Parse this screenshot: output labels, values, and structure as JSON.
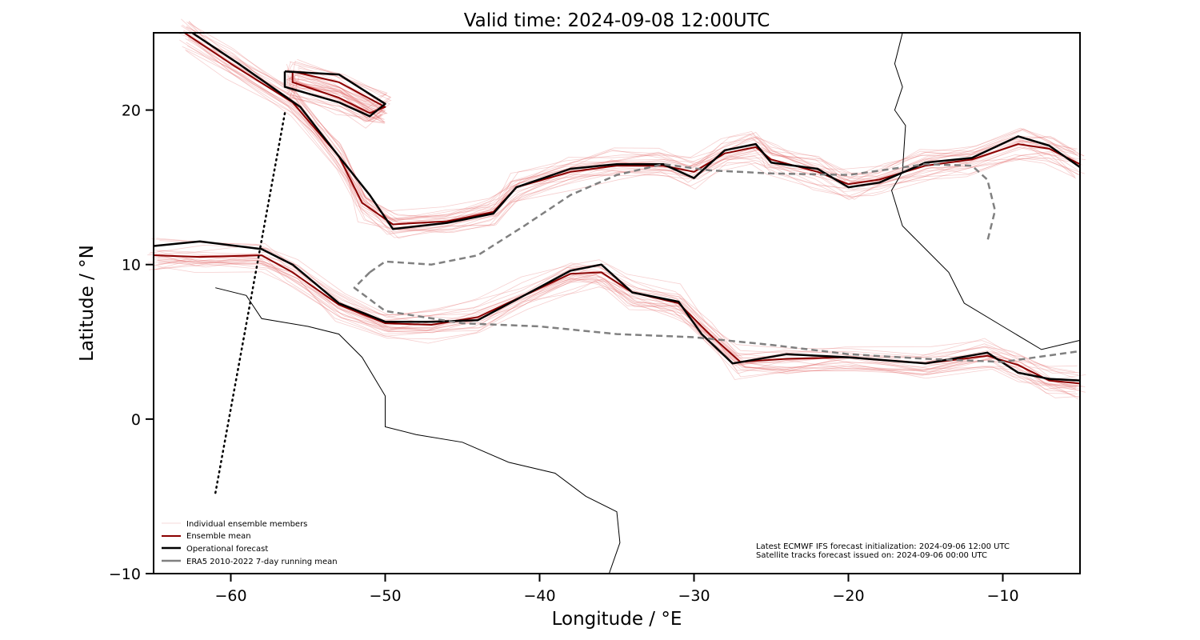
{
  "chart_data": {
    "type": "line",
    "title": "Valid time: 2024-09-08 12:00UTC",
    "xlabel": "Longitude / °E",
    "ylabel": "Latitude / °N",
    "xlim": [
      -65,
      -5
    ],
    "ylim": [
      -10,
      25
    ],
    "xticks": [
      -60,
      -50,
      -40,
      -30,
      -20,
      -10
    ],
    "yticks": [
      -10,
      0,
      10,
      20
    ],
    "grid": false,
    "legend_position": "bottom-left",
    "legend": [
      {
        "label": "Individual ensemble members",
        "color": "#e8a0a0"
      },
      {
        "label": "Ensemble mean",
        "color": "#8b0000"
      },
      {
        "label": "Operational forecast",
        "color": "#000000"
      },
      {
        "label": "ERA5 2010-2022 7-day running mean",
        "color": "#808080"
      }
    ],
    "annotation": [
      "Latest ECMWF IFS forecast initialization: 2024-09-06 12:00 UTC",
      "Satellite tracks forecast issued on: 2024-09-06 00:00 UTC"
    ],
    "series": [
      {
        "name": "Ensemble mean",
        "color": "#8b0000",
        "paths": [
          [
            [
              -63,
              25
            ],
            [
              -60,
              23
            ],
            [
              -56,
              20.5
            ],
            [
              -53,
              17
            ],
            [
              -51.5,
              14
            ],
            [
              -49.5,
              12.6
            ],
            [
              -46,
              12.8
            ],
            [
              -43,
              13.4
            ],
            [
              -41.5,
              15
            ],
            [
              -38,
              16
            ],
            [
              -35,
              16.4
            ],
            [
              -32,
              16.4
            ],
            [
              -30,
              16
            ],
            [
              -28,
              17.2
            ],
            [
              -26,
              17.6
            ],
            [
              -25,
              16.8
            ],
            [
              -22,
              16
            ],
            [
              -20,
              15.2
            ],
            [
              -18,
              15.5
            ],
            [
              -15,
              16.4
            ],
            [
              -12,
              16.8
            ],
            [
              -9,
              17.8
            ],
            [
              -7,
              17.5
            ],
            [
              -5,
              16.5
            ]
          ],
          [
            [
              -65,
              10.6
            ],
            [
              -62,
              10.5
            ],
            [
              -58,
              10.6
            ],
            [
              -56,
              9.5
            ],
            [
              -53,
              7.4
            ],
            [
              -50,
              6.2
            ],
            [
              -47,
              6.1
            ],
            [
              -44,
              6.6
            ],
            [
              -41,
              8
            ],
            [
              -38,
              9.4
            ],
            [
              -36,
              9.5
            ],
            [
              -34,
              8.2
            ],
            [
              -31,
              7.5
            ],
            [
              -29,
              5.5
            ],
            [
              -27,
              3.7
            ],
            [
              -24,
              3.9
            ],
            [
              -20,
              4
            ],
            [
              -15,
              3.6
            ],
            [
              -11,
              4.1
            ],
            [
              -9,
              3.5
            ],
            [
              -7,
              2.5
            ],
            [
              -5,
              2.3
            ]
          ],
          [
            [
              -56,
              22.5
            ],
            [
              -53,
              21.8
            ],
            [
              -50,
              20.2
            ],
            [
              -51,
              19.8
            ],
            [
              -53,
              20.8
            ],
            [
              -56,
              21.8
            ],
            [
              -56,
              22.5
            ]
          ]
        ]
      },
      {
        "name": "Operational forecast",
        "color": "#000000",
        "paths": [
          [
            [
              -62.5,
              25
            ],
            [
              -59.5,
              23
            ],
            [
              -55.5,
              20.2
            ],
            [
              -53,
              17
            ],
            [
              -51,
              14.5
            ],
            [
              -49.5,
              12.3
            ],
            [
              -46,
              12.7
            ],
            [
              -43,
              13.3
            ],
            [
              -41.5,
              15
            ],
            [
              -38,
              16.2
            ],
            [
              -35,
              16.5
            ],
            [
              -32,
              16.5
            ],
            [
              -30,
              15.6
            ],
            [
              -28,
              17.4
            ],
            [
              -26,
              17.8
            ],
            [
              -25,
              16.6
            ],
            [
              -22,
              16.2
            ],
            [
              -20,
              15
            ],
            [
              -18,
              15.3
            ],
            [
              -15,
              16.6
            ],
            [
              -12,
              16.9
            ],
            [
              -9,
              18.3
            ],
            [
              -7,
              17.7
            ],
            [
              -5,
              16.3
            ]
          ],
          [
            [
              -65,
              11.2
            ],
            [
              -62,
              11.5
            ],
            [
              -58,
              11
            ],
            [
              -56,
              10
            ],
            [
              -53,
              7.5
            ],
            [
              -50,
              6.3
            ],
            [
              -47,
              6.3
            ],
            [
              -44,
              6.4
            ],
            [
              -41,
              8
            ],
            [
              -38,
              9.6
            ],
            [
              -36,
              10
            ],
            [
              -34,
              8.2
            ],
            [
              -31,
              7.6
            ],
            [
              -29.5,
              5.5
            ],
            [
              -27.5,
              3.6
            ],
            [
              -24,
              4.2
            ],
            [
              -20,
              4
            ],
            [
              -15,
              3.6
            ],
            [
              -11,
              4.3
            ],
            [
              -9,
              3
            ],
            [
              -7,
              2.6
            ],
            [
              -5,
              2.5
            ]
          ],
          [
            [
              -56.5,
              22.5
            ],
            [
              -53,
              22.3
            ],
            [
              -50,
              20.4
            ],
            [
              -51,
              19.6
            ],
            [
              -53,
              20.5
            ],
            [
              -56.5,
              21.5
            ],
            [
              -56.5,
              22.5
            ]
          ]
        ]
      },
      {
        "name": "ERA5 2010-2022 7-day running mean",
        "color": "#808080",
        "paths": [
          [
            [
              -51,
              9.5
            ],
            [
              -50,
              10.2
            ],
            [
              -47,
              10
            ],
            [
              -44,
              10.6
            ],
            [
              -41,
              12.5
            ],
            [
              -38,
              14.5
            ],
            [
              -35,
              15.8
            ],
            [
              -32,
              16.5
            ],
            [
              -29,
              16.1
            ],
            [
              -25,
              15.9
            ],
            [
              -20,
              15.8
            ],
            [
              -15,
              16.5
            ],
            [
              -12,
              16.4
            ],
            [
              -11,
              15.5
            ],
            [
              -10.5,
              13.5
            ],
            [
              -11,
              11.5
            ]
          ],
          [
            [
              -51,
              9.5
            ],
            [
              -52,
              8.5
            ],
            [
              -50,
              7
            ],
            [
              -45,
              6.2
            ],
            [
              -40,
              6
            ],
            [
              -35,
              5.5
            ],
            [
              -30,
              5.3
            ],
            [
              -25,
              4.8
            ],
            [
              -20,
              4.2
            ],
            [
              -15,
              3.9
            ],
            [
              -10,
              3.7
            ],
            [
              -5,
              4.4
            ]
          ]
        ]
      }
    ],
    "satellite_track": [
      [
        -56.5,
        19.8
      ],
      [
        -61,
        -4.8
      ]
    ],
    "coastlines": [
      [
        [
          -16.5,
          25
        ],
        [
          -17,
          23
        ],
        [
          -16.5,
          21.5
        ],
        [
          -17,
          20
        ],
        [
          -16.3,
          19
        ],
        [
          -16.5,
          16
        ],
        [
          -17.2,
          14.8
        ],
        [
          -16.5,
          12.5
        ],
        [
          -15,
          11
        ],
        [
          -13.5,
          9.5
        ],
        [
          -12.5,
          7.5
        ],
        [
          -10,
          6
        ],
        [
          -7.5,
          4.5
        ],
        [
          -5,
          5.1
        ]
      ],
      [
        [
          -61,
          8.5
        ],
        [
          -59,
          8
        ],
        [
          -58,
          6.5
        ],
        [
          -55,
          6
        ],
        [
          -53,
          5.5
        ],
        [
          -51.5,
          4
        ],
        [
          -50,
          1.5
        ],
        [
          -50,
          -0.5
        ],
        [
          -48,
          -1
        ],
        [
          -45,
          -1.5
        ],
        [
          -42,
          -2.8
        ],
        [
          -39,
          -3.5
        ],
        [
          -37,
          -5
        ],
        [
          -35,
          -6
        ],
        [
          -34.8,
          -8
        ],
        [
          -35.5,
          -10
        ]
      ]
    ]
  }
}
